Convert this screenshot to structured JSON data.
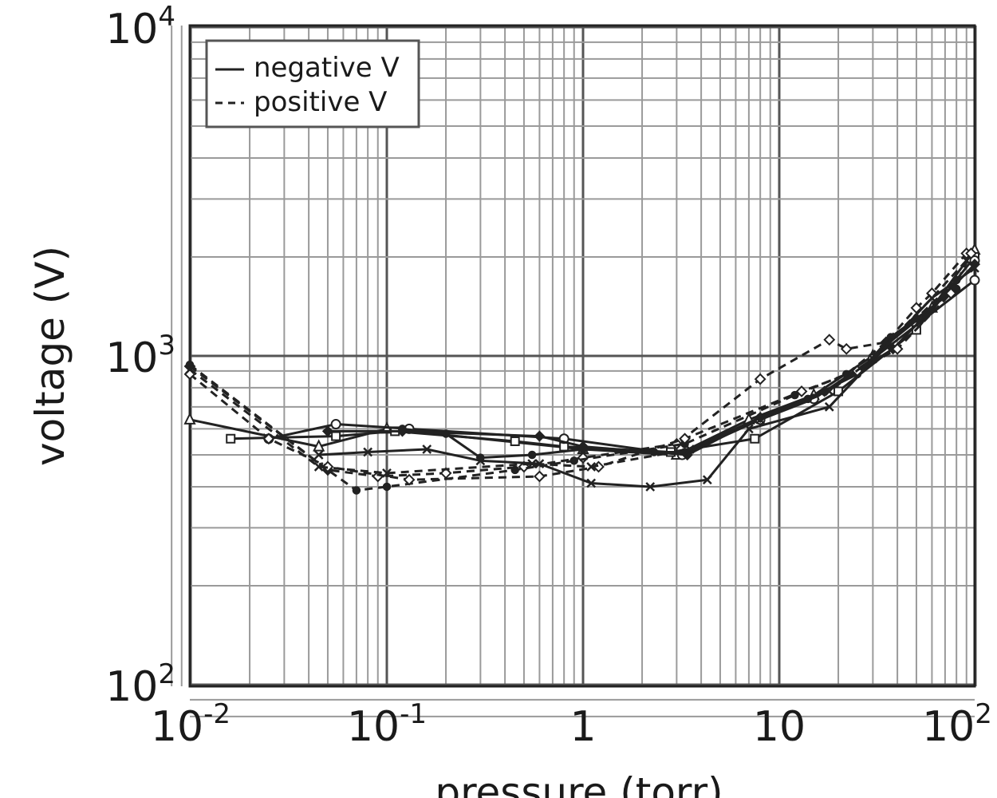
{
  "chart_data": {
    "type": "line",
    "title": "",
    "xlabel": "pressure (torr)",
    "ylabel": "voltage (V)",
    "x_scale": "log",
    "y_scale": "log",
    "xlim": [
      0.008,
      110
    ],
    "ylim": [
      80,
      10000
    ],
    "grid": true,
    "legend_placement": "top-left",
    "x_ticks": [
      {
        "value": 0.01,
        "base": "10",
        "exp": "-2"
      },
      {
        "value": 0.1,
        "base": "10",
        "exp": "-1"
      },
      {
        "value": 1,
        "base": "1",
        "exp": ""
      },
      {
        "value": 10,
        "base": "10",
        "exp": ""
      },
      {
        "value": 100,
        "base": "10",
        "exp": "2"
      }
    ],
    "y_ticks": [
      {
        "value": 100,
        "base": "10",
        "exp": "2"
      },
      {
        "value": 1000,
        "base": "10",
        "exp": "3"
      },
      {
        "value": 10000,
        "base": "10",
        "exp": "4"
      }
    ],
    "legend": [
      {
        "label": "negative V",
        "style": "solid"
      },
      {
        "label": "positive V",
        "style": "dashed"
      }
    ],
    "series": [
      {
        "style": "solid",
        "marker": "triangle",
        "x": [
          0.0085,
          0.045,
          0.1,
          1.0,
          3.0,
          7.0,
          15,
          30,
          60,
          110
        ],
        "y": [
          640,
          530,
          600,
          520,
          500,
          640,
          760,
          1000,
          1400,
          2100
        ]
      },
      {
        "style": "solid",
        "marker": "square",
        "x": [
          0.016,
          0.055,
          0.11,
          0.45,
          0.8,
          2.8,
          7.5,
          20,
          50,
          110
        ],
        "y": [
          560,
          570,
          590,
          550,
          530,
          510,
          560,
          780,
          1200,
          2000
        ]
      },
      {
        "style": "solid",
        "marker": "circle",
        "x": [
          0.025,
          0.055,
          0.13,
          0.8,
          3.2,
          8,
          15,
          30,
          100,
          110
        ],
        "y": [
          560,
          620,
          600,
          560,
          500,
          640,
          740,
          980,
          1700,
          1950
        ]
      },
      {
        "style": "solid",
        "marker": "diamond",
        "x": [
          0.05,
          0.12,
          0.6,
          1.0,
          3.4,
          8,
          17,
          38,
          120
        ],
        "y": [
          590,
          590,
          570,
          530,
          500,
          650,
          780,
          1050,
          1900
        ]
      },
      {
        "style": "solid",
        "marker": "x",
        "x": [
          0.045,
          0.08,
          0.16,
          0.3,
          0.6,
          1.1,
          2.2,
          4.3,
          7,
          18,
          60,
          100
        ],
        "y": [
          500,
          510,
          520,
          480,
          470,
          410,
          400,
          420,
          600,
          700,
          1500,
          1850
        ]
      },
      {
        "style": "solid",
        "marker": "dot",
        "x": [
          0.12,
          0.2,
          0.3,
          0.55,
          1.0,
          2.3,
          3.3,
          8,
          14,
          25,
          37,
          50,
          80
        ],
        "y": [
          600,
          580,
          490,
          500,
          520,
          510,
          510,
          650,
          740,
          880,
          1140,
          1300,
          1600
        ]
      },
      {
        "style": "dashed",
        "marker": "diamond-open",
        "x": [
          0.0085,
          0.05,
          0.09,
          0.2,
          0.5,
          1.0,
          3.0,
          8,
          18,
          22,
          35,
          50,
          60,
          90
        ],
        "y": [
          930,
          450,
          430,
          440,
          460,
          490,
          540,
          850,
          1120,
          1050,
          1100,
          1400,
          1550,
          2050
        ]
      },
      {
        "style": "dashed",
        "marker": "dot",
        "x": [
          0.0085,
          0.05,
          0.07,
          0.1,
          0.45,
          0.9,
          3.3,
          12,
          22,
          35,
          50,
          80
        ],
        "y": [
          940,
          450,
          390,
          400,
          450,
          480,
          540,
          760,
          880,
          1100,
          1300,
          1700
        ]
      },
      {
        "style": "dashed",
        "marker": "diamond-open",
        "x": [
          0.0095,
          0.025,
          0.05,
          0.13,
          0.6,
          1.2,
          3.3,
          13,
          25,
          40,
          75,
          95
        ],
        "y": [
          880,
          560,
          460,
          420,
          430,
          460,
          560,
          780,
          900,
          1050,
          1550,
          2050
        ]
      },
      {
        "style": "dashed",
        "marker": "x",
        "x": [
          0.0095,
          0.045,
          0.1,
          0.55,
          1.1,
          3.5,
          8,
          18,
          30,
          60,
          90
        ],
        "y": [
          910,
          460,
          440,
          470,
          460,
          520,
          640,
          780,
          980,
          1500,
          1950
        ]
      }
    ]
  }
}
